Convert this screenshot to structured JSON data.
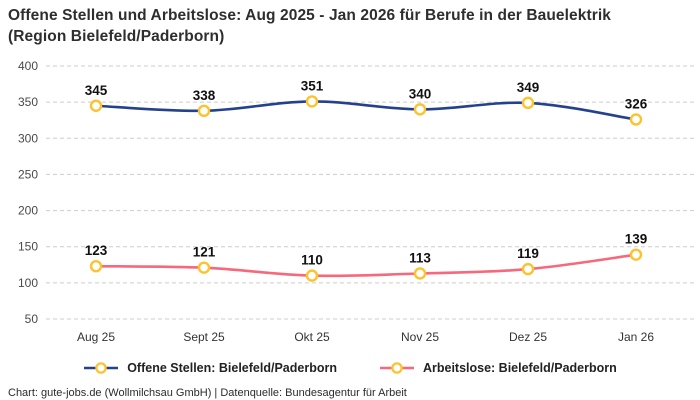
{
  "header": {
    "title_line1": "Offene Stellen und Arbeitslose: Aug 2025 - Jan 2026 für Berufe in der Bauelektrik",
    "title_line2": "(Region Bielefeld/Paderborn)"
  },
  "chart_data": {
    "type": "line",
    "title": "Offene Stellen und Arbeitslose: Aug 2025 - Jan 2026 für Berufe in der Bauelektrik (Region Bielefeld/Paderborn)",
    "categories": [
      "Aug 25",
      "Sept 25",
      "Okt 25",
      "Nov 25",
      "Dez 25",
      "Jan 26"
    ],
    "series": [
      {
        "name": "Offene Stellen: Bielefeld/Paderborn",
        "color": "#24418e",
        "values": [
          345,
          338,
          351,
          340,
          349,
          326
        ]
      },
      {
        "name": "Arbeitslose: Bielefeld/Paderborn",
        "color": "#f8687c",
        "values": [
          123,
          121,
          110,
          113,
          119,
          139
        ]
      }
    ],
    "marker_ring_color": "#fcc32f",
    "marker_fill_color": "#ffffff",
    "gridline_color": "#cdcdcd",
    "value_label_color": "#111111",
    "tick_label_color": "#4a4a4a",
    "xlabel": "",
    "ylabel": "",
    "ylim": [
      50,
      400
    ],
    "ytick_step": 50,
    "grid": "dashed-horizontal",
    "legend_position": "bottom",
    "data_labels": true
  },
  "legend": {
    "items": [
      {
        "label": "Offene Stellen: Bielefeld/Paderborn"
      },
      {
        "label": "Arbeitslose: Bielefeld/Paderborn"
      }
    ]
  },
  "footer": {
    "credit": "Chart: gute-jobs.de (Wollmilchsau GmbH) | Datenquelle: Bundesagentur für Arbeit"
  }
}
